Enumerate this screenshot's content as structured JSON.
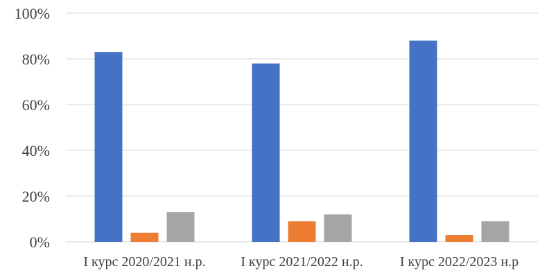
{
  "chart_data": {
    "type": "bar",
    "categories": [
      "І курс 2020/2021 н.р.",
      "І курс 2021/2022 н.р.",
      "І курс 2022/2023 н.р"
    ],
    "series": [
      {
        "values": [
          83,
          78,
          88
        ],
        "color": "#4472C4"
      },
      {
        "values": [
          4,
          9,
          3
        ],
        "color": "#ED7D31"
      },
      {
        "values": [
          13,
          12,
          9
        ],
        "color": "#A5A5A5"
      }
    ],
    "ylim": [
      0,
      100
    ],
    "yticks": [
      "0%",
      "20%",
      "40%",
      "60%",
      "80%",
      "100%"
    ],
    "grid": true,
    "title": "",
    "xlabel": "",
    "ylabel": ""
  }
}
